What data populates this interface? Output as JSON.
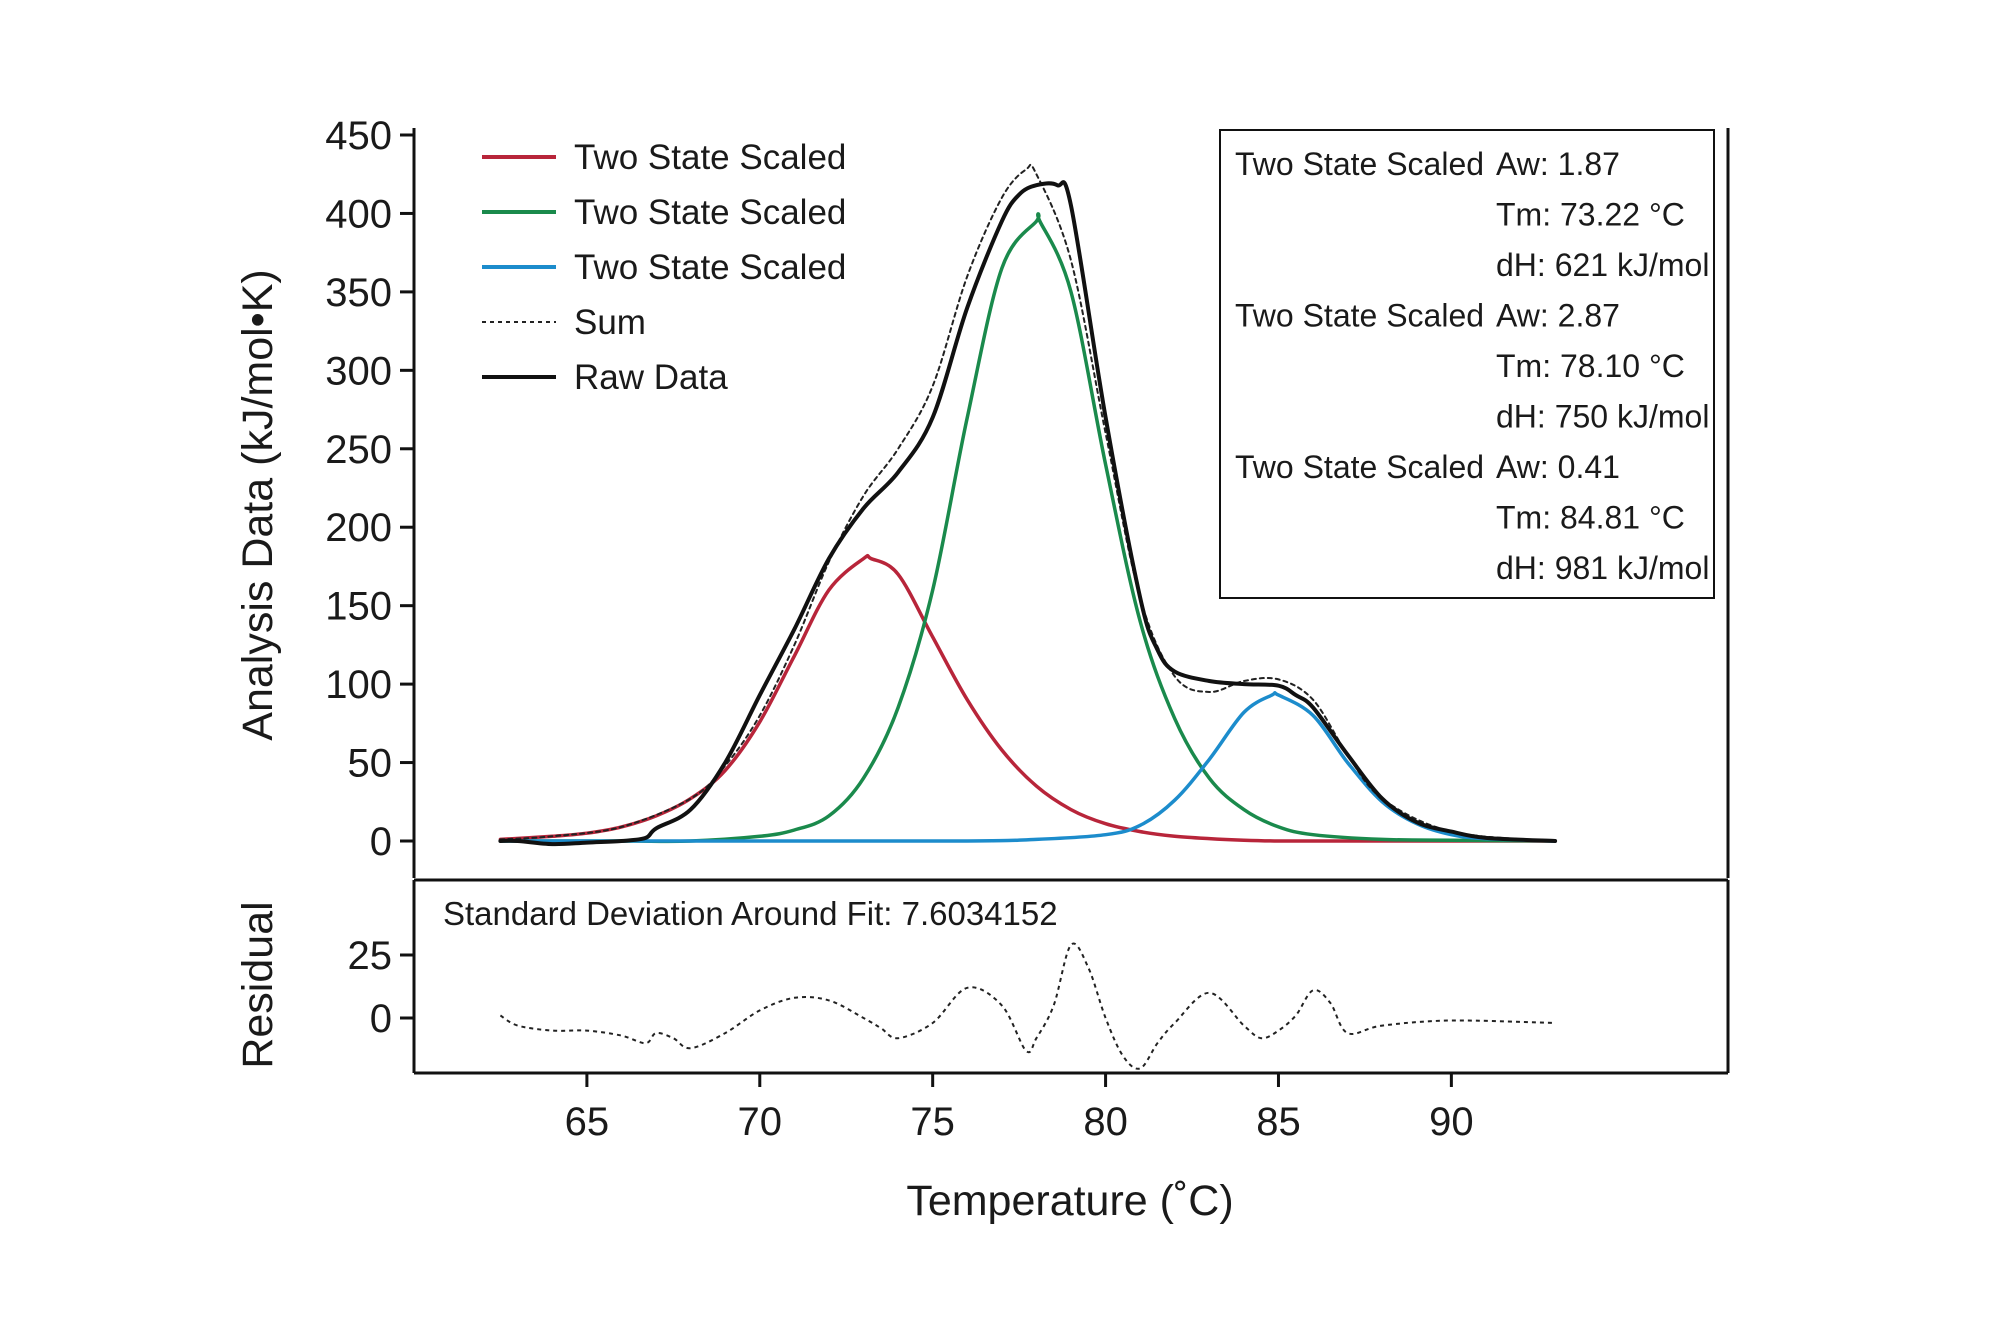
{
  "chart_data": {
    "type": "line",
    "xlabel": "Temperature (˚C)",
    "main": {
      "ylabel": "Analysis Data (kJ/mol•K)",
      "ylim": [
        -25,
        450
      ],
      "yticks": [
        "450",
        "400",
        "350",
        "300",
        "250",
        "200",
        "150",
        "100",
        "50",
        "0"
      ],
      "ytick_values": [
        450,
        400,
        350,
        300,
        250,
        200,
        150,
        100,
        50,
        0
      ],
      "legend_position": "top-left",
      "series": [
        {
          "name": "Two State Scaled",
          "color": "#b8253a",
          "style": "solid",
          "x": [
            62.5,
            64,
            65,
            66,
            67,
            68,
            69,
            70,
            71,
            72,
            73,
            73.22,
            74,
            75,
            76,
            77,
            78,
            79,
            80,
            81,
            82,
            83,
            84,
            85,
            86,
            88,
            90,
            93
          ],
          "y": [
            1,
            3,
            5,
            9,
            16,
            27,
            45,
            76,
            118,
            160,
            180,
            180,
            170,
            130,
            90,
            58,
            35,
            20,
            11,
            6,
            3,
            1.5,
            0.5,
            0,
            0,
            0,
            0,
            0
          ]
        },
        {
          "name": "Two State Scaled",
          "color": "#1a8a4c",
          "style": "solid",
          "x": [
            62.5,
            66,
            68,
            70,
            71,
            72,
            73,
            74,
            75,
            76,
            77,
            78,
            78.1,
            79,
            80,
            81,
            82,
            83,
            84,
            85,
            86,
            88,
            90,
            93
          ],
          "y": [
            0,
            0,
            0,
            3,
            7,
            16,
            40,
            85,
            160,
            270,
            365,
            395,
            395,
            350,
            240,
            140,
            78,
            40,
            20,
            9,
            4,
            1,
            0.5,
            0
          ]
        },
        {
          "name": "Two State Scaled",
          "color": "#1c8ccc",
          "style": "solid",
          "x": [
            62.5,
            70,
            76,
            78,
            80,
            81,
            82,
            83,
            84,
            84.81,
            85,
            86,
            87,
            88,
            89,
            90,
            91,
            93
          ],
          "y": [
            0,
            0,
            0,
            1,
            4,
            10,
            26,
            52,
            82,
            93,
            93,
            80,
            50,
            25,
            11,
            4,
            1.5,
            0
          ]
        },
        {
          "name": "Sum",
          "color": "#222222",
          "style": "dotted",
          "x": [
            62.5,
            64,
            66,
            68,
            69,
            70,
            71,
            72,
            73,
            74,
            75,
            76,
            77,
            77.7,
            78,
            79,
            80,
            81,
            82,
            83,
            84,
            85,
            86,
            87,
            88,
            90,
            93
          ],
          "y": [
            1,
            3,
            9,
            27,
            48,
            80,
            125,
            178,
            220,
            250,
            290,
            360,
            410,
            428,
            425,
            370,
            260,
            155,
            105,
            95,
            102,
            103,
            90,
            55,
            27,
            6,
            0
          ]
        },
        {
          "name": "Raw Data",
          "color": "#111111",
          "style": "solid",
          "x": [
            62.5,
            63,
            64,
            65,
            66,
            66.7,
            67,
            68,
            69,
            70,
            71,
            72,
            73,
            74,
            75,
            76,
            77,
            77.5,
            78,
            78.6,
            79,
            80,
            81,
            81.5,
            82,
            83,
            84,
            85,
            85.5,
            86,
            87,
            88,
            89,
            90,
            91,
            93
          ],
          "y": [
            0,
            0,
            -2,
            -1,
            0,
            2,
            8,
            20,
            50,
            93,
            135,
            180,
            212,
            235,
            270,
            340,
            395,
            412,
            418,
            418,
            405,
            270,
            155,
            122,
            108,
            102,
            100,
            99,
            93,
            85,
            55,
            27,
            12,
            6,
            2,
            0
          ]
        }
      ],
      "info_box": [
        {
          "name": "Two State Scaled",
          "lines": [
            "Aw: 1.87",
            "Tm: 73.22 °C",
            "dH: 621 kJ/mol"
          ]
        },
        {
          "name": "Two State Scaled",
          "lines": [
            "Aw: 2.87",
            "Tm: 78.10 °C",
            "dH: 750 kJ/mol"
          ]
        },
        {
          "name": "Two State Scaled",
          "lines": [
            "Aw: 0.41",
            "Tm: 84.81 °C",
            "dH: 981 kJ/mol"
          ]
        }
      ]
    },
    "residual": {
      "ylabel": "Residual",
      "ylim": [
        -25,
        45
      ],
      "yticks": [
        "25",
        "0"
      ],
      "ytick_values": [
        25,
        0
      ],
      "annotation": "Standard Deviation Around Fit: 7.6034152",
      "series": [
        {
          "name": "Residual",
          "color": "#222222",
          "style": "dotted",
          "x": [
            62.5,
            63,
            64,
            65,
            66,
            66.7,
            67,
            67.5,
            68,
            69,
            70,
            71,
            72,
            73,
            73.5,
            74,
            75,
            76,
            77,
            77.7,
            78,
            78.5,
            79,
            79.5,
            80,
            80.5,
            81,
            81.5,
            82,
            83,
            84,
            84.5,
            85,
            85.5,
            86,
            86.5,
            87,
            88,
            90,
            93
          ],
          "y": [
            1,
            -3,
            -5,
            -5,
            -7,
            -10,
            -6,
            -8,
            -12,
            -6,
            3,
            8,
            7,
            0,
            -4,
            -8,
            -2,
            12,
            5,
            -13,
            -8,
            5,
            29,
            20,
            0,
            -15,
            -20,
            -10,
            -2,
            10,
            -3,
            -8,
            -5,
            1,
            11,
            6,
            -6,
            -3,
            -1,
            -2
          ]
        }
      ]
    },
    "xaxis": {
      "xlim": [
        60,
        98
      ],
      "ticks": [
        "65",
        "70",
        "75",
        "80",
        "85",
        "90"
      ],
      "tick_values": [
        65,
        70,
        75,
        80,
        85,
        90
      ]
    }
  }
}
